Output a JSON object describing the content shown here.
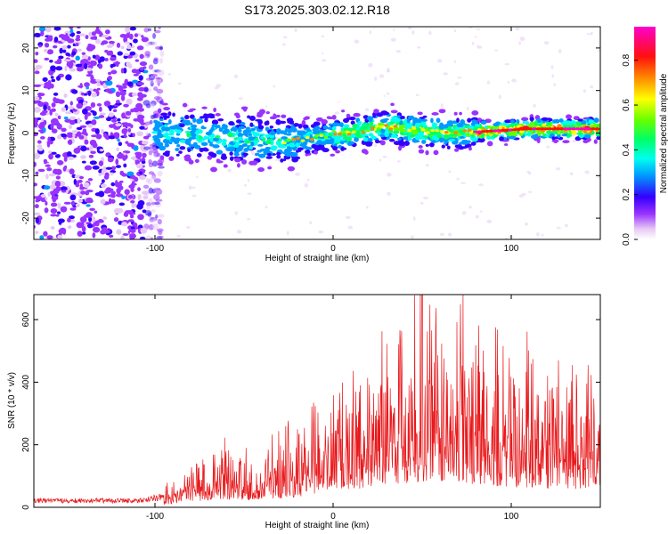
{
  "title": "S173.2025.303.02.12.R18",
  "chart_data": [
    {
      "type": "heatmap",
      "name": "spectrogram",
      "xlabel": "Height of straight line (km)",
      "ylabel": "Frequency (Hz)",
      "xlim": [
        -168,
        150
      ],
      "ylim": [
        -25,
        25
      ],
      "xticks": [
        "-100",
        "0",
        "100"
      ],
      "yticks": [
        "-20",
        "-10",
        "0",
        "10",
        "20"
      ],
      "colorbar": {
        "label": "Normalized spectral amplitude",
        "range": [
          0.0,
          0.95
        ],
        "ticks": [
          "0.0",
          "0.2",
          "0.4",
          "0.6",
          "0.8"
        ]
      },
      "ridge": {
        "description_points_km_hz": [
          [
            -100,
            0
          ],
          [
            -60,
            -1
          ],
          [
            -30,
            -2
          ],
          [
            -10,
            -1
          ],
          [
            10,
            0
          ],
          [
            30,
            1.5
          ],
          [
            50,
            0.5
          ],
          [
            70,
            0
          ],
          [
            90,
            0.5
          ],
          [
            110,
            1
          ],
          [
            150,
            1
          ]
        ]
      }
    },
    {
      "type": "line",
      "name": "snr",
      "xlabel": "Height of straight line (km)",
      "ylabel": "SNR (10 * v/v)",
      "xlim": [
        -168,
        150
      ],
      "ylim": [
        0,
        680
      ],
      "xticks": [
        "-100",
        "0",
        "100"
      ],
      "yticks": [
        "0",
        "200",
        "400",
        "600"
      ],
      "color": "#e8191c",
      "envelope_km_snr": [
        [
          -168,
          25
        ],
        [
          -110,
          25
        ],
        [
          -95,
          40
        ],
        [
          -80,
          90
        ],
        [
          -65,
          130
        ],
        [
          -50,
          110
        ],
        [
          -35,
          140
        ],
        [
          -20,
          160
        ],
        [
          -15,
          200
        ],
        [
          -5,
          240
        ],
        [
          10,
          280
        ],
        [
          25,
          330
        ],
        [
          40,
          380
        ],
        [
          55,
          420
        ],
        [
          70,
          400
        ],
        [
          85,
          350
        ],
        [
          100,
          320
        ],
        [
          115,
          300
        ],
        [
          130,
          290
        ],
        [
          150,
          280
        ]
      ],
      "peak": [
        50,
        680
      ]
    }
  ]
}
